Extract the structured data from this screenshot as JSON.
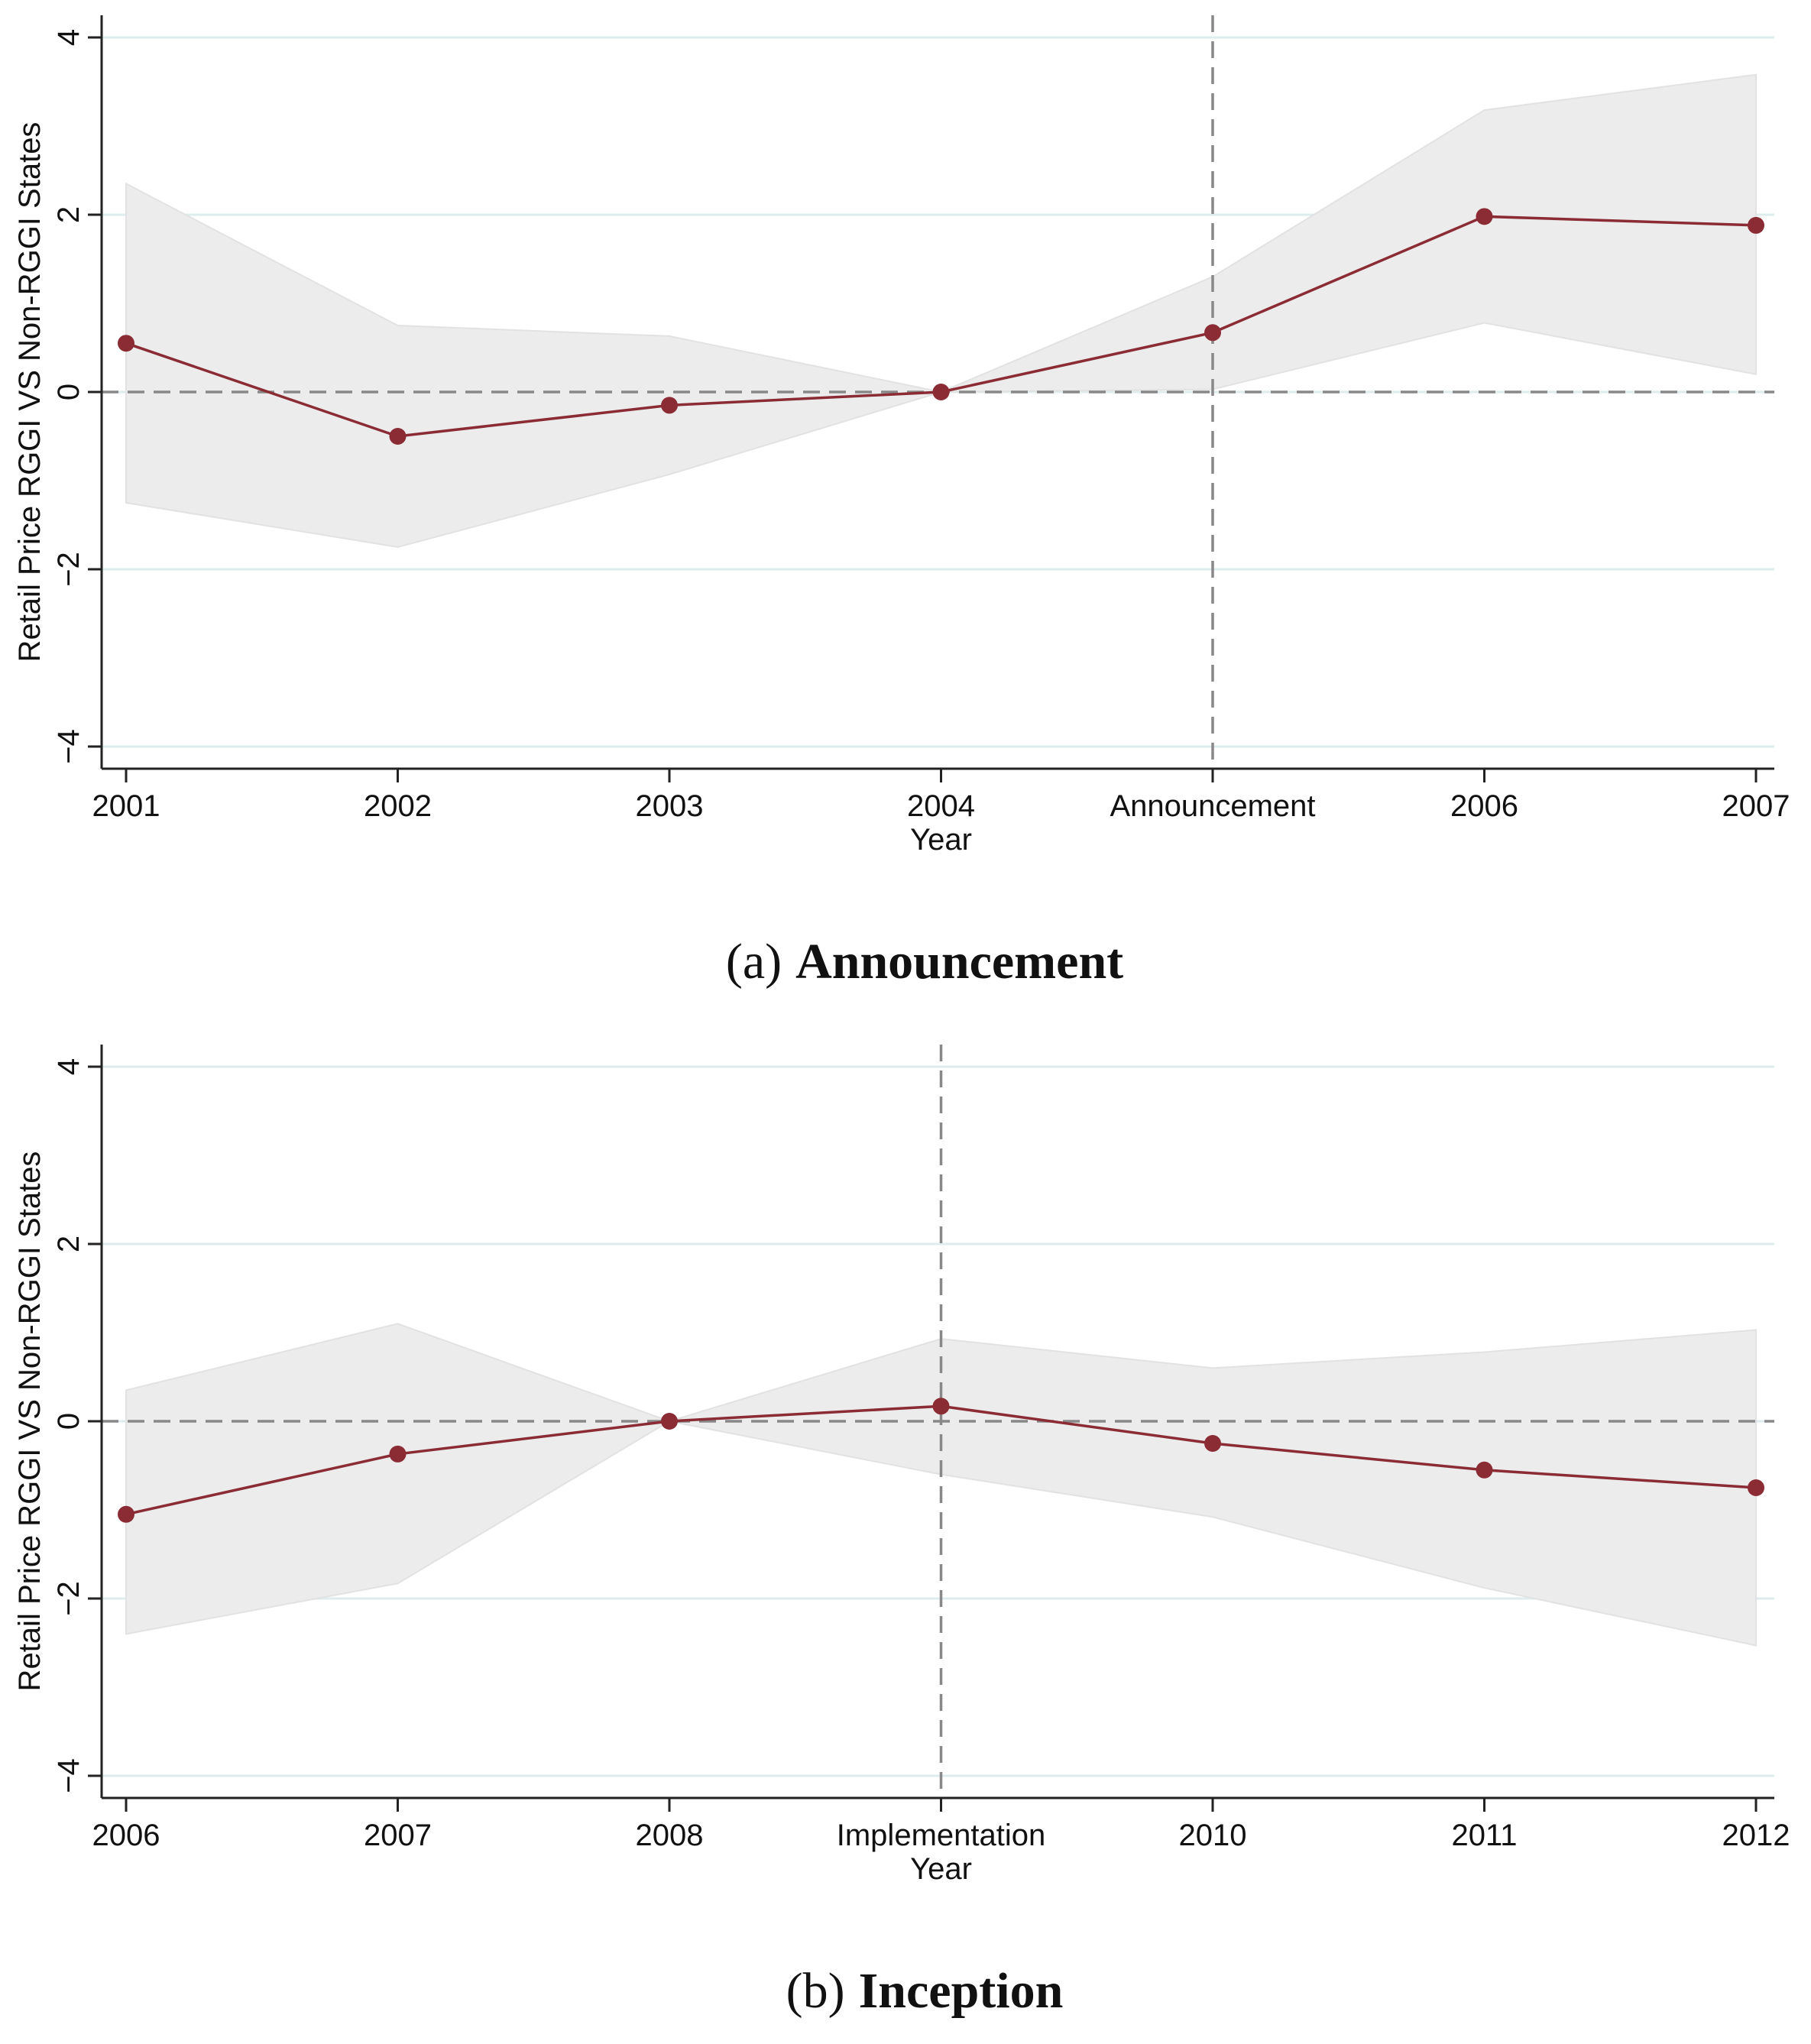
{
  "chart_data": [
    {
      "type": "line",
      "caption_label": "(a)",
      "caption": "Announcement",
      "xlabel": "Year",
      "ylabel": "Retail Price RGGI VS Non-RGGI States",
      "categories": [
        "2001",
        "2002",
        "2003",
        "2004",
        "Announcement",
        "2006",
        "2007"
      ],
      "series": [
        {
          "color": "#8b2c35",
          "band_color": "#ececec",
          "values": [
            0.55,
            -0.5,
            -0.15,
            0,
            0.67,
            1.98,
            1.88
          ],
          "upper": [
            2.35,
            0.75,
            0.63,
            0,
            1.3,
            3.18,
            3.58
          ],
          "lower": [
            -1.25,
            -1.75,
            -0.93,
            0,
            0.03,
            0.78,
            0.2
          ]
        }
      ],
      "ylim": [
        -4.25,
        4.25
      ],
      "yticks": [
        {
          "value": -4,
          "label": "−4"
        },
        {
          "value": -2,
          "label": "−2"
        },
        0,
        2,
        4
      ],
      "grid": true,
      "vline": 4,
      "hline": 0
    },
    {
      "type": "line",
      "caption_label": "(b)",
      "caption": "Inception",
      "xlabel": "Year",
      "ylabel": "Retail Price RGGI VS Non-RGGI States",
      "categories": [
        "2006",
        "2007",
        "2008",
        "Implementation",
        "2010",
        "2011",
        "2012"
      ],
      "series": [
        {
          "color": "#8b2c35",
          "band_color": "#ececec",
          "values": [
            -1.05,
            -0.37,
            0,
            0.17,
            -0.25,
            -0.55,
            -0.75
          ],
          "upper": [
            0.35,
            1.1,
            0,
            0.93,
            0.6,
            0.78,
            1.03
          ],
          "lower": [
            -2.4,
            -1.83,
            0,
            -0.6,
            -1.08,
            -1.88,
            -2.53
          ]
        }
      ],
      "ylim": [
        -4.25,
        4.25
      ],
      "yticks": [
        {
          "value": -4,
          "label": "−4"
        },
        {
          "value": -2,
          "label": "−2"
        },
        0,
        2,
        4
      ],
      "grid": true,
      "vline": 3,
      "hline": 0
    }
  ]
}
